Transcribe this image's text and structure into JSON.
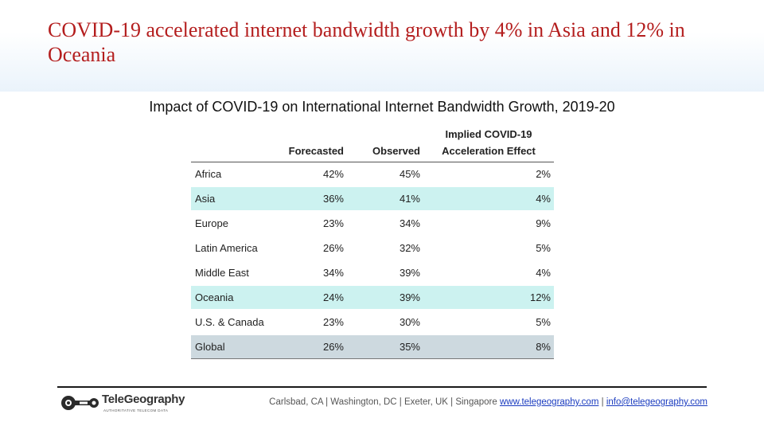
{
  "slide": {
    "title": "COVID-19 accelerated internet bandwidth growth by 4% in Asia and 12% in Oceania"
  },
  "table": {
    "caption": "Impact of COVID-19 on International Internet Bandwidth Growth, 2019-20",
    "headers": {
      "region": "",
      "forecasted": "Forecasted",
      "observed": "Observed",
      "effect_line1": "Implied COVID-19",
      "effect_line2": "Acceleration Effect"
    },
    "rows": [
      {
        "region": "Africa",
        "forecasted": "42%",
        "observed": "45%",
        "effect": "2%",
        "highlight": "none"
      },
      {
        "region": "Asia",
        "forecasted": "36%",
        "observed": "41%",
        "effect": "4%",
        "highlight": "cyan"
      },
      {
        "region": "Europe",
        "forecasted": "23%",
        "observed": "34%",
        "effect": "9%",
        "highlight": "none"
      },
      {
        "region": "Latin America",
        "forecasted": "26%",
        "observed": "32%",
        "effect": "5%",
        "highlight": "none"
      },
      {
        "region": "Middle East",
        "forecasted": "34%",
        "observed": "39%",
        "effect": "4%",
        "highlight": "none"
      },
      {
        "region": "Oceania",
        "forecasted": "24%",
        "observed": "39%",
        "effect": "12%",
        "highlight": "cyan"
      },
      {
        "region": "U.S. & Canada",
        "forecasted": "23%",
        "observed": "30%",
        "effect": "5%",
        "highlight": "none"
      },
      {
        "region": "Global",
        "forecasted": "26%",
        "observed": "35%",
        "effect": "8%",
        "highlight": "gray"
      }
    ]
  },
  "footer": {
    "logo_name": "TeleGeography",
    "logo_tagline": "AUTHORITATIVE TELECOM DATA",
    "locations": "Carlsbad, CA | Washington, DC | Exeter, UK | Singapore",
    "separator": "|",
    "website": "www.telegeography.com",
    "email": "info@telegeography.com"
  },
  "colors": {
    "title": "#b41e1e",
    "highlight_cyan": "#ccf2f0",
    "highlight_gray": "#cdd9df",
    "link": "#1a3bbf"
  },
  "icons": [
    "telegeography-logo-icon"
  ]
}
